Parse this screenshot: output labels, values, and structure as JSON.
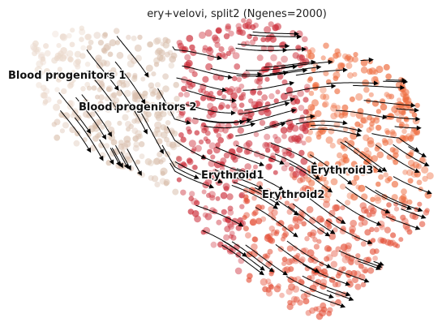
{
  "chart_data": {
    "type": "scatter",
    "title": "ery+velovi, split2 (Ngenes=2000)",
    "axes_visible": false,
    "grid": false,
    "legend": "on data",
    "overlay": "velocity streamlines with arrowheads",
    "colors": {
      "Blood progenitors 1": "#ead8cb",
      "Blood progenitors 2": "#d9bfad",
      "Erythroid1": "#cc2e3a",
      "Erythroid2": "#e4533b",
      "Erythroid3": "#ee6a3c",
      "streamline": "#000000"
    },
    "clusters": [
      {
        "name": "Blood progenitors 1"
      },
      {
        "name": "Blood progenitors 2"
      },
      {
        "name": "Erythroid1"
      },
      {
        "name": "Erythroid2"
      },
      {
        "name": "Erythroid3"
      }
    ]
  }
}
